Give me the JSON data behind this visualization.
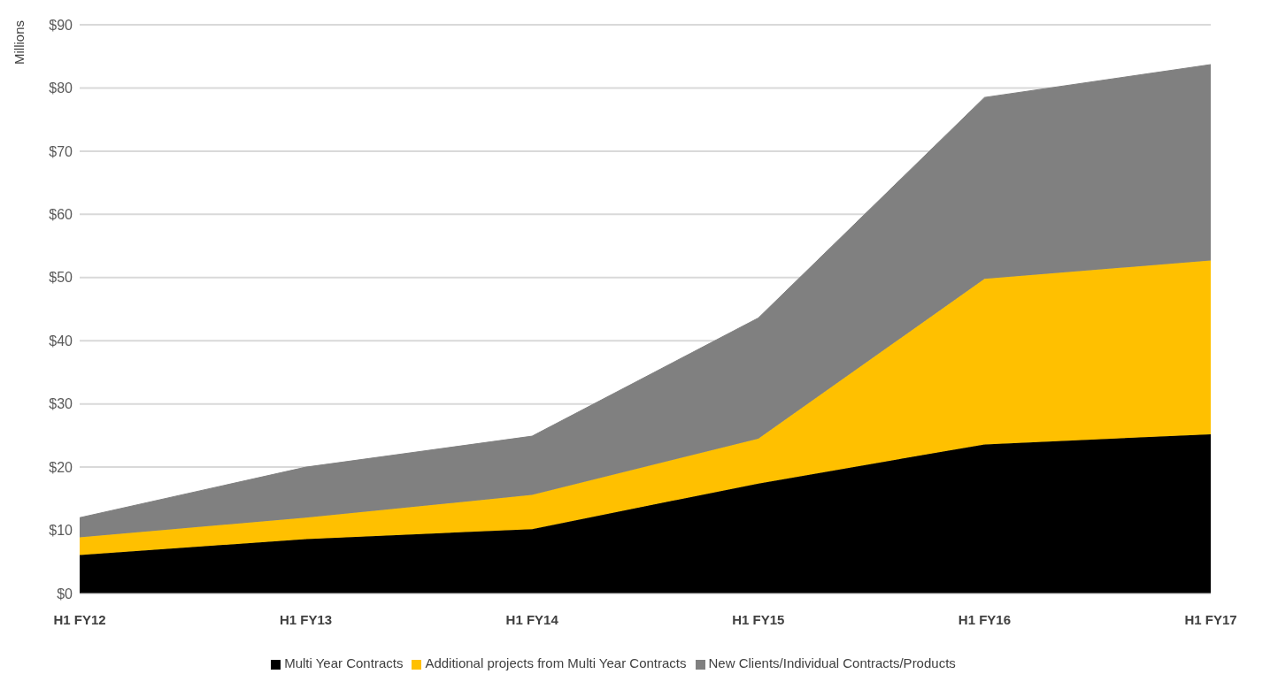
{
  "chart_data": {
    "type": "area",
    "stacked": true,
    "ylabel": "Millions",
    "categories": [
      "H1 FY12",
      "H1 FY13",
      "H1 FY14",
      "H1 FY15",
      "H1 FY16",
      "H1 FY17"
    ],
    "series": [
      {
        "name": "Multi Year Contracts",
        "color": "#000000",
        "values": [
          6.1,
          8.6,
          10.2,
          17.4,
          23.6,
          25.2
        ]
      },
      {
        "name": "Additional projects from Multi Year Contracts",
        "color": "#ffc000",
        "values": [
          2.8,
          3.4,
          5.4,
          7.1,
          26.2,
          27.5
        ]
      },
      {
        "name": "New Clients/Individual Contracts/Products",
        "color": "#808080",
        "values": [
          3.1,
          8.0,
          9.3,
          19.1,
          28.7,
          31.0
        ]
      }
    ],
    "ylim": [
      0,
      90
    ],
    "yticks": [
      {
        "value": 0,
        "label": "$0"
      },
      {
        "value": 10,
        "label": "$10"
      },
      {
        "value": 20,
        "label": "$20"
      },
      {
        "value": 30,
        "label": "$30"
      },
      {
        "value": 40,
        "label": "$40"
      },
      {
        "value": 50,
        "label": "$50"
      },
      {
        "value": 60,
        "label": "$60"
      },
      {
        "value": 70,
        "label": "$70"
      },
      {
        "value": 80,
        "label": "$80"
      },
      {
        "value": 90,
        "label": "$90"
      }
    ],
    "grid": "y",
    "legend": "bottom"
  }
}
